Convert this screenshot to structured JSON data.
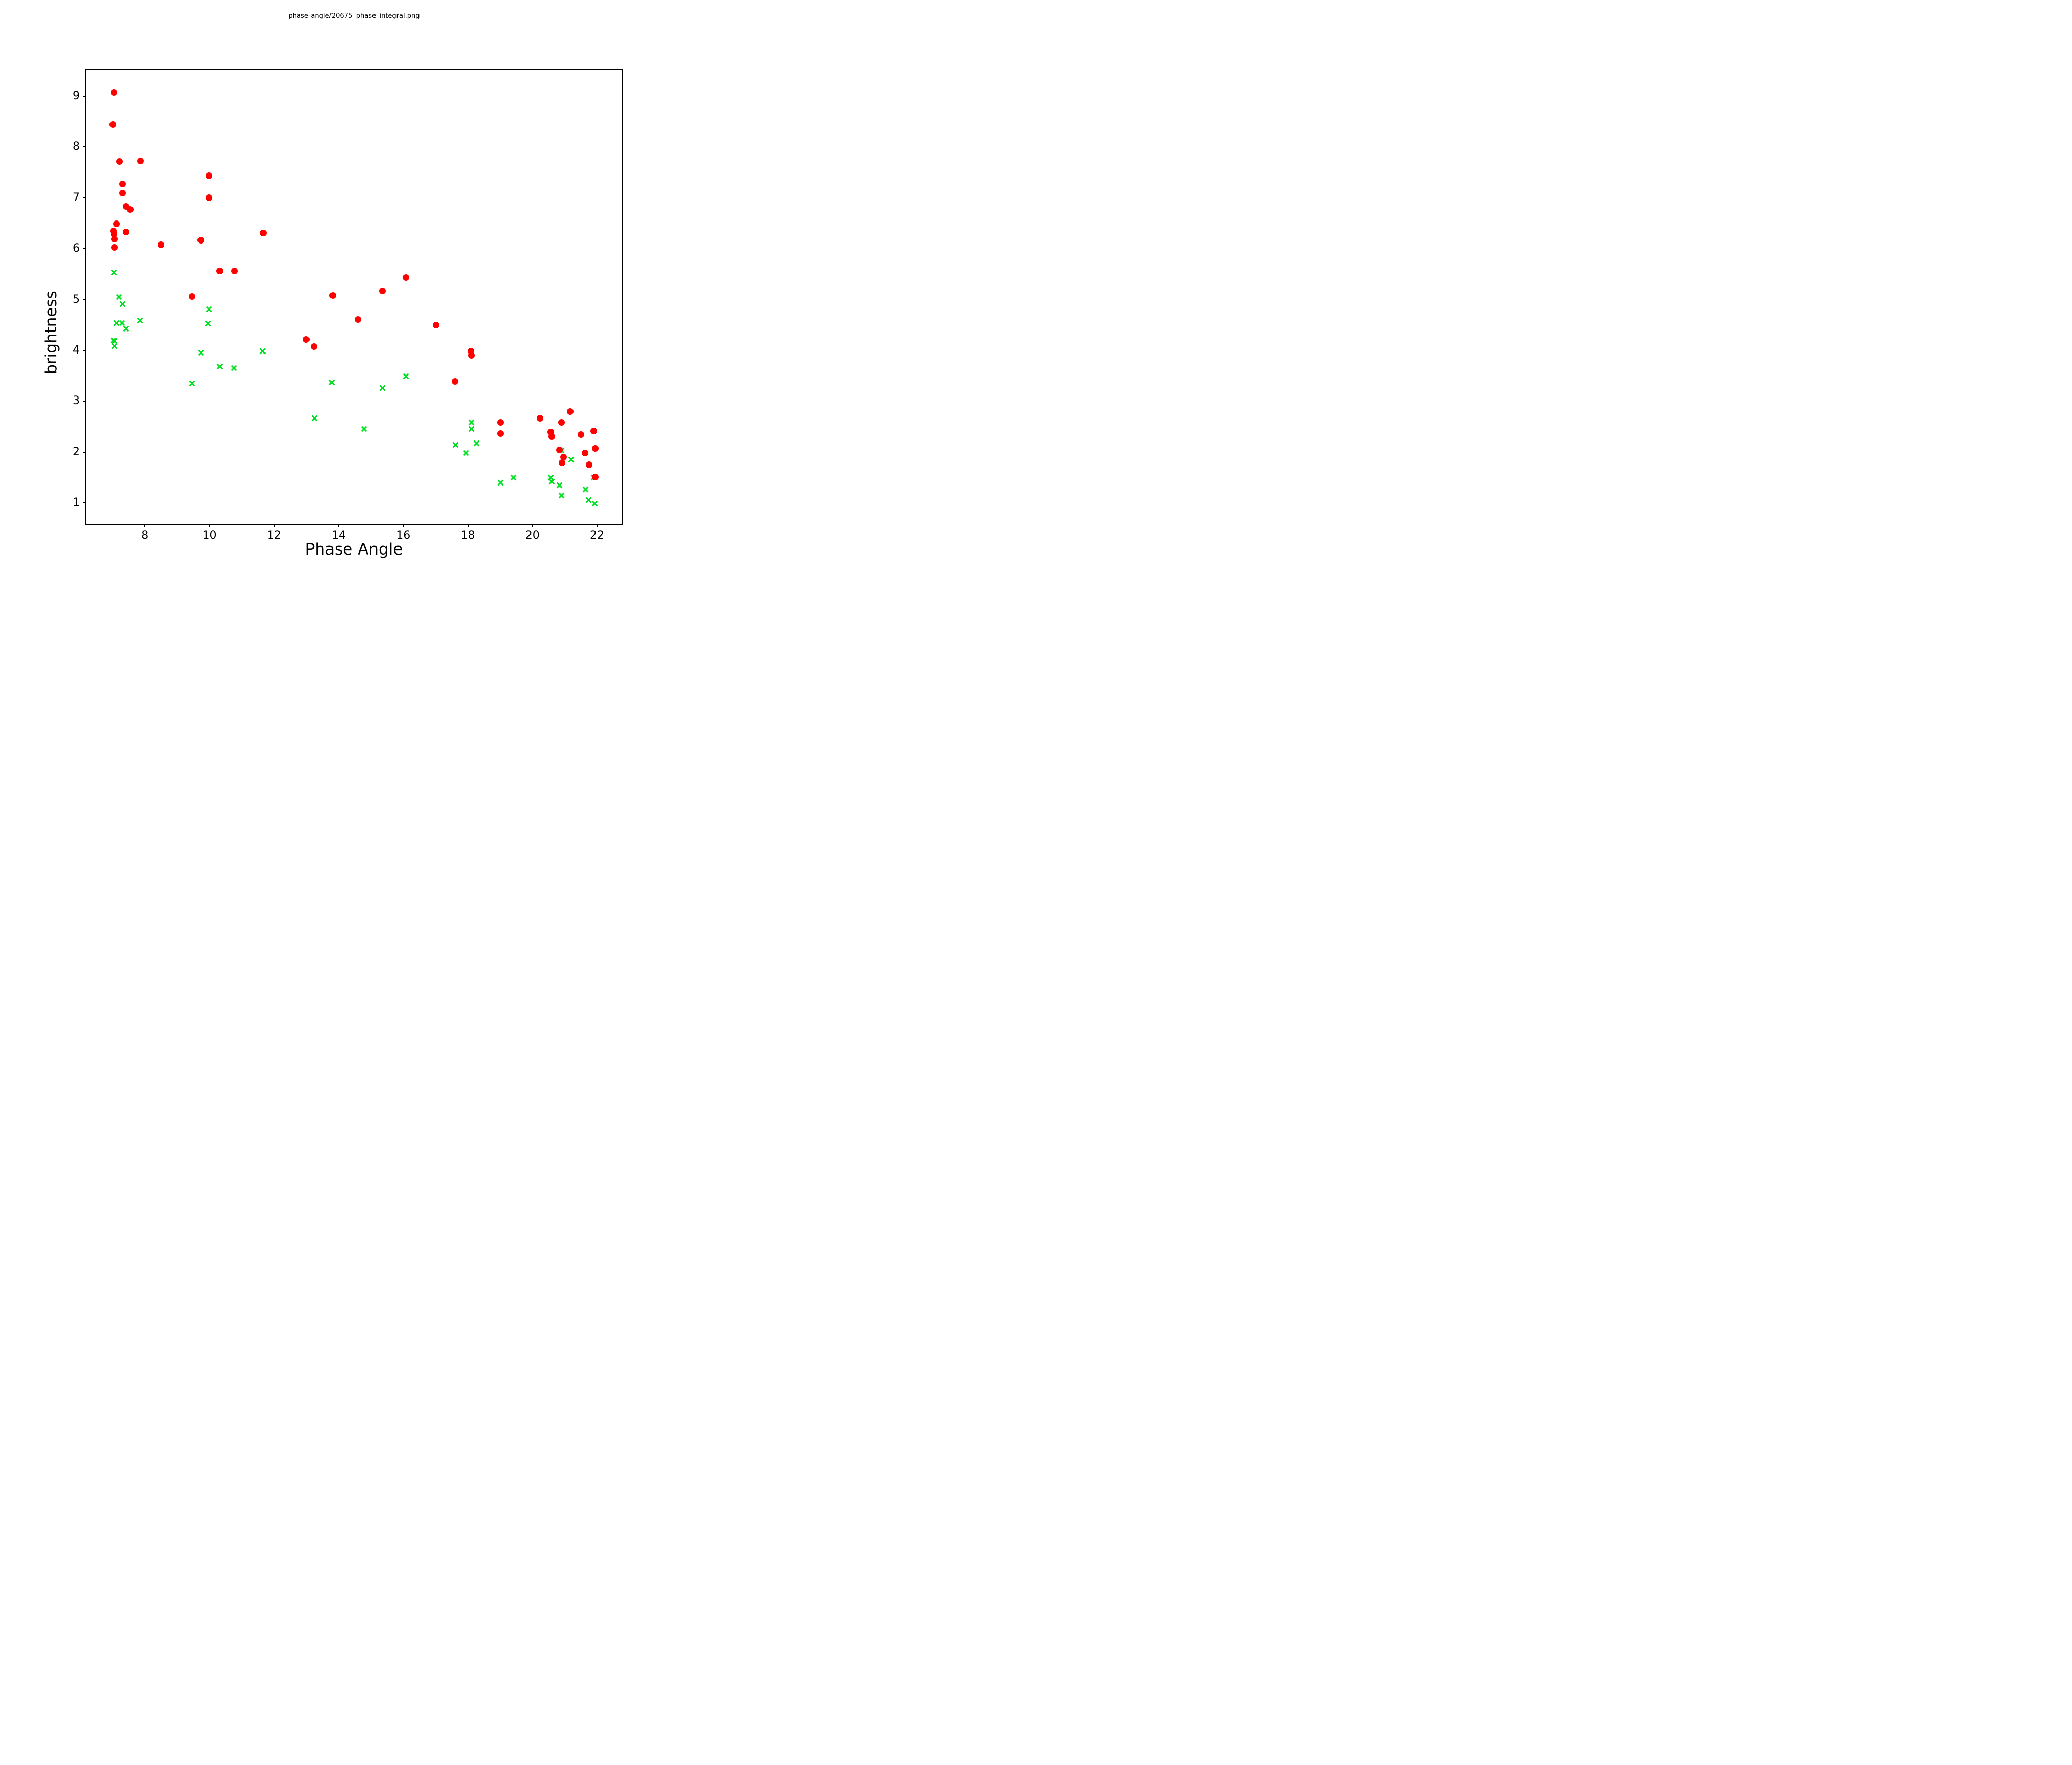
{
  "title": "phase-angle/20675_phase_integral.png",
  "chart_data": {
    "type": "scatter",
    "title": "phase-angle/20675_phase_integral.png",
    "xlabel": "Phase Angle",
    "ylabel": "brightness",
    "xlim": [
      6.19,
      22.76
    ],
    "ylim": [
      0.59,
      9.51
    ],
    "x_ticks": [
      8,
      10,
      12,
      14,
      16,
      18,
      20,
      22
    ],
    "y_ticks": [
      1,
      2,
      3,
      4,
      5,
      6,
      7,
      8,
      9
    ],
    "grid": false,
    "legend_position": "none",
    "background_color": "#ffffff",
    "axes_color": "#000000",
    "series": [
      {
        "name": "green-x-series",
        "marker": "x",
        "color": "#00df20",
        "points": [
          [
            7.03,
            5.55
          ],
          [
            7.2,
            5.07
          ],
          [
            7.3,
            4.93
          ],
          [
            7.84,
            4.61
          ],
          [
            7.11,
            4.56
          ],
          [
            7.29,
            4.56
          ],
          [
            7.41,
            4.45
          ],
          [
            7.02,
            4.22
          ],
          [
            7.06,
            4.21
          ],
          [
            7.05,
            4.11
          ],
          [
            9.99,
            4.83
          ],
          [
            9.95,
            4.55
          ],
          [
            9.73,
            3.97
          ],
          [
            10.31,
            3.7
          ],
          [
            10.76,
            3.67
          ],
          [
            11.65,
            4.0
          ],
          [
            9.46,
            3.37
          ],
          [
            13.79,
            3.39
          ],
          [
            16.09,
            3.51
          ],
          [
            15.36,
            3.28
          ],
          [
            13.24,
            2.69
          ],
          [
            14.79,
            2.48
          ],
          [
            18.11,
            2.61
          ],
          [
            18.11,
            2.48
          ],
          [
            17.62,
            2.16
          ],
          [
            18.27,
            2.19
          ],
          [
            17.93,
            2.0
          ],
          [
            20.9,
            2.05
          ],
          [
            21.2,
            1.87
          ],
          [
            19.02,
            1.42
          ],
          [
            19.41,
            1.52
          ],
          [
            20.57,
            1.52
          ],
          [
            20.59,
            1.44
          ],
          [
            20.83,
            1.37
          ],
          [
            20.9,
            1.17
          ],
          [
            21.9,
            1.52
          ],
          [
            21.64,
            1.29
          ],
          [
            21.74,
            1.08
          ],
          [
            21.92,
            1.01
          ]
        ]
      },
      {
        "name": "red-circle-series",
        "marker": "circle",
        "color": "#ff0000",
        "points": [
          [
            7.03,
            9.07
          ],
          [
            7.01,
            8.44
          ],
          [
            7.21,
            7.72
          ],
          [
            7.86,
            7.73
          ],
          [
            9.99,
            7.43
          ],
          [
            7.3,
            7.27
          ],
          [
            7.3,
            7.09
          ],
          [
            9.99,
            7.0
          ],
          [
            7.42,
            6.83
          ],
          [
            7.54,
            6.77
          ],
          [
            7.11,
            6.49
          ],
          [
            7.02,
            6.35
          ],
          [
            7.04,
            6.29
          ],
          [
            7.05,
            6.19
          ],
          [
            7.41,
            6.33
          ],
          [
            7.05,
            6.03
          ],
          [
            8.49,
            6.08
          ],
          [
            9.73,
            6.17
          ],
          [
            11.66,
            6.31
          ],
          [
            10.31,
            5.56
          ],
          [
            10.77,
            5.56
          ],
          [
            9.46,
            5.06
          ],
          [
            13.82,
            5.08
          ],
          [
            15.35,
            5.17
          ],
          [
            16.08,
            5.43
          ],
          [
            14.6,
            4.61
          ],
          [
            17.02,
            4.5
          ],
          [
            12.99,
            4.22
          ],
          [
            13.23,
            4.08
          ],
          [
            18.1,
            3.98
          ],
          [
            18.11,
            3.9
          ],
          [
            17.6,
            3.39
          ],
          [
            19.02,
            2.59
          ],
          [
            19.02,
            2.37
          ],
          [
            20.23,
            2.67
          ],
          [
            20.89,
            2.59
          ],
          [
            21.16,
            2.8
          ],
          [
            20.57,
            2.4
          ],
          [
            20.6,
            2.31
          ],
          [
            21.5,
            2.35
          ],
          [
            21.89,
            2.42
          ],
          [
            21.94,
            2.07
          ],
          [
            21.63,
            1.98
          ],
          [
            20.84,
            2.04
          ],
          [
            20.96,
            1.9
          ],
          [
            20.91,
            1.79
          ],
          [
            21.76,
            1.75
          ],
          [
            21.94,
            1.51
          ]
        ]
      }
    ]
  }
}
